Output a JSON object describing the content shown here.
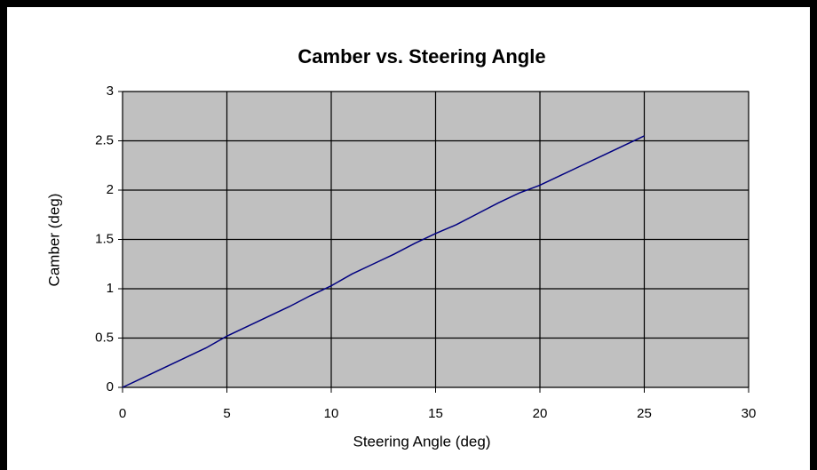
{
  "chart_data": {
    "type": "line",
    "title": "Camber vs. Steering Angle",
    "x_label": "Steering Angle (deg)",
    "y_label": "Camber (deg)",
    "x": [
      0,
      1,
      2,
      3,
      4,
      5,
      6,
      7,
      8,
      9,
      10,
      11,
      12,
      13,
      14,
      15,
      16,
      17,
      18,
      19,
      20,
      21,
      22,
      23,
      24,
      25
    ],
    "series": [
      {
        "name": "Camber",
        "color": "#000080",
        "values": [
          0,
          0.1,
          0.2,
          0.3,
          0.4,
          0.52,
          0.62,
          0.72,
          0.82,
          0.93,
          1.03,
          1.15,
          1.25,
          1.35,
          1.46,
          1.56,
          1.65,
          1.76,
          1.87,
          1.97,
          2.05,
          2.15,
          2.25,
          2.35,
          2.45,
          2.55
        ]
      }
    ],
    "xlim": [
      0,
      30
    ],
    "xticks": [
      0,
      5,
      10,
      15,
      20,
      25,
      30
    ],
    "ylim": [
      0,
      3
    ],
    "yticks": [
      0,
      0.5,
      1,
      1.5,
      2,
      2.5,
      3
    ],
    "grid": true,
    "plot_background": "#c0c0c0"
  }
}
